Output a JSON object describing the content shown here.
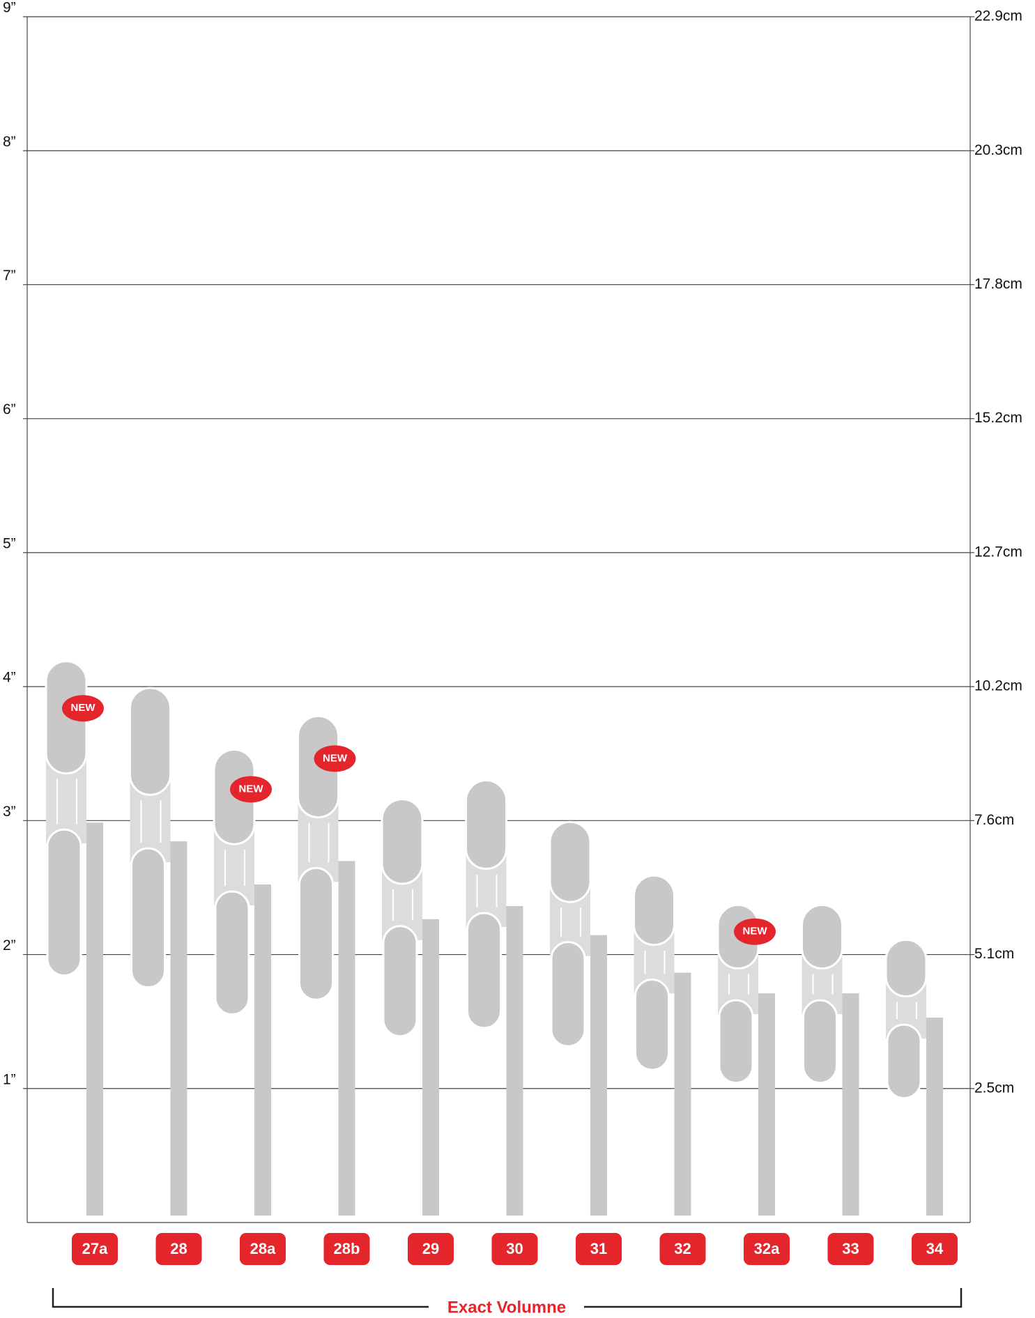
{
  "chart_data": {
    "type": "pipette",
    "x_label": "Exact Volumne",
    "categories": [
      "27a",
      "28",
      "28a",
      "28b",
      "29",
      "30",
      "31",
      "32",
      "32a",
      "33",
      "34"
    ],
    "values": [
      4.19,
      3.99,
      3.53,
      3.78,
      3.16,
      3.3,
      2.99,
      2.59,
      2.37,
      2.37,
      2.11
    ],
    "new": [
      true,
      false,
      true,
      true,
      false,
      false,
      false,
      false,
      true,
      false,
      false
    ],
    "badge_label": "NEW",
    "color": "#c8c8c9",
    "label_color": "#e4252c",
    "ylim": [
      0,
      9
    ],
    "yticks": [
      {
        "value": 1,
        "label": "1”"
      },
      {
        "value": 2,
        "label": "2”"
      },
      {
        "value": 3,
        "label": "3”"
      },
      {
        "value": 4,
        "label": "4”"
      },
      {
        "value": 5,
        "label": "5”"
      },
      {
        "value": 6,
        "label": "6”"
      },
      {
        "value": 7,
        "label": "7”"
      },
      {
        "value": 8,
        "label": "8”"
      },
      {
        "value": 9,
        "label": "9”"
      }
    ],
    "y2lim": [
      0,
      22.86
    ],
    "y2ticks": [
      {
        "value": 2.54,
        "label": "2.5cm"
      },
      {
        "value": 5.08,
        "label": "5.1cm"
      },
      {
        "value": 7.62,
        "label": "7.6cm"
      },
      {
        "value": 10.16,
        "label": "10.2cm"
      },
      {
        "value": 12.7,
        "label": "12.7cm"
      },
      {
        "value": 15.24,
        "label": "15.2cm"
      },
      {
        "value": 17.78,
        "label": "17.8cm"
      },
      {
        "value": 20.32,
        "label": "20.3cm"
      },
      {
        "value": 22.86,
        "label": "22.9cm"
      }
    ],
    "grid": true
  }
}
